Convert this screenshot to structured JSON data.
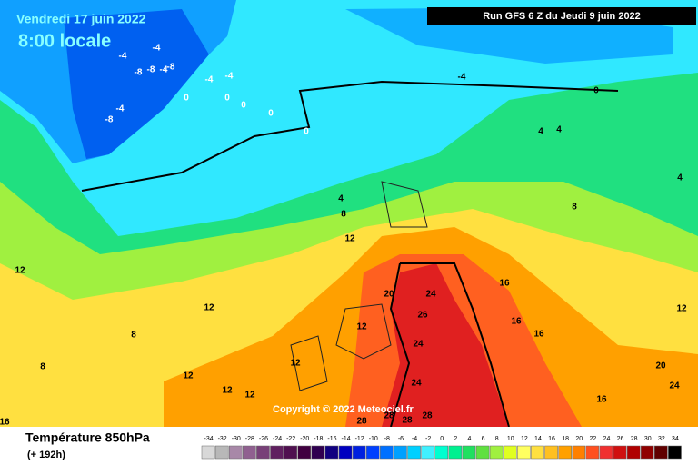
{
  "header": {
    "date": "Vendredi 17 juin 2022",
    "time": "8:00 locale",
    "run": "Run GFS 6 Z du Jeudi 9 juin 2022"
  },
  "copyright": "Copyright © 2022 Meteociel.fr",
  "footer": {
    "title": "Température 850hPa",
    "lead": "(+ 192h)"
  },
  "scale": {
    "values": [
      -34,
      -32,
      -30,
      -28,
      -26,
      -24,
      -22,
      -20,
      -18,
      -16,
      -14,
      -12,
      -10,
      -8,
      -6,
      -4,
      -2,
      0,
      2,
      4,
      6,
      8,
      10,
      12,
      14,
      16,
      18,
      20,
      22,
      24,
      26,
      28,
      30,
      32,
      34
    ],
    "colors": [
      "#d8d8d8",
      "#b8b8b8",
      "#a888a8",
      "#906090",
      "#784078",
      "#602060",
      "#501050",
      "#400040",
      "#300050",
      "#100080",
      "#0000c0",
      "#0020e0",
      "#0040ff",
      "#0070ff",
      "#00a0ff",
      "#00d0ff",
      "#40f0ff",
      "#00ffd0",
      "#00f090",
      "#20e060",
      "#60e040",
      "#a0f040",
      "#e0ff20",
      "#ffff60",
      "#ffe040",
      "#ffc020",
      "#ffa000",
      "#ff8000",
      "#ff5020",
      "#f03030",
      "#d01010",
      "#b00000",
      "#900000",
      "#600000",
      "#000000"
    ]
  },
  "map": {
    "labels": [
      "-4",
      "-8",
      "-8",
      "-4",
      "-8",
      "-4",
      "-8",
      "-4",
      "-4",
      "-4",
      "0",
      "0",
      "0",
      "0",
      "0",
      "-4",
      "0",
      "4",
      "4",
      "4",
      "4",
      "8",
      "8",
      "12",
      "12",
      "8",
      "8",
      "12",
      "12",
      "12",
      "12",
      "12",
      "12",
      "16",
      "16",
      "16",
      "16",
      "20",
      "24",
      "26",
      "24",
      "24",
      "28",
      "28",
      "28",
      "28",
      "20",
      "24",
      "12",
      "16"
    ]
  }
}
